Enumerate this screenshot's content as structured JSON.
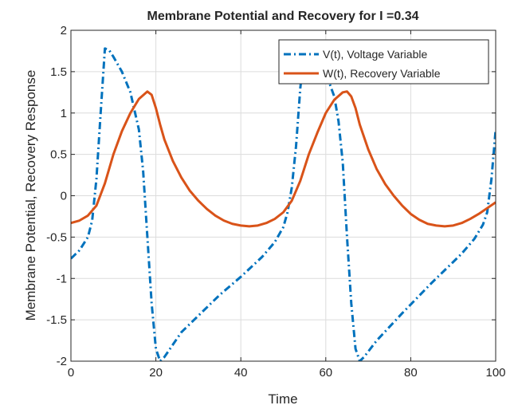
{
  "chart_data": {
    "type": "line",
    "title": "Membrane Potential and Recovery for I =0.34",
    "xlabel": "Time",
    "ylabel": "Membrane Potential, Recovery Response",
    "xlim": [
      0,
      100
    ],
    "ylim": [
      -2,
      2
    ],
    "xticks": [
      0,
      20,
      40,
      60,
      80,
      100
    ],
    "xtick_labels": [
      "0",
      "20",
      "40",
      "60",
      "80",
      "100"
    ],
    "yticks": [
      -2,
      -1.5,
      -1,
      -0.5,
      0,
      0.5,
      1,
      1.5,
      2
    ],
    "ytick_labels": [
      "-2",
      "-1.5",
      "-1",
      "-0.5",
      "0",
      "0.5",
      "1",
      "1.5",
      "2"
    ],
    "grid": true,
    "legend_position": "top-right",
    "series": [
      {
        "name": "V(t), Voltage Variable",
        "color": "#0072BD",
        "style": "dash-dot",
        "x": [
          0,
          2,
          4,
          5,
          6,
          7,
          8,
          9,
          10,
          12,
          14,
          16,
          17,
          18,
          19,
          20,
          21,
          22,
          24,
          26,
          30,
          35,
          40,
          45,
          48,
          50,
          51,
          52,
          53,
          54,
          55,
          56,
          57,
          58,
          60,
          62,
          63,
          64,
          65,
          66,
          67,
          68,
          69,
          72,
          78,
          85,
          92,
          95,
          97,
          98,
          99,
          100
        ],
        "y": [
          -0.76,
          -0.66,
          -0.5,
          -0.3,
          0.2,
          1.0,
          1.78,
          1.76,
          1.68,
          1.5,
          1.25,
          0.8,
          0.3,
          -0.5,
          -1.3,
          -1.85,
          -2.0,
          -1.95,
          -1.8,
          -1.65,
          -1.45,
          -1.2,
          -0.98,
          -0.74,
          -0.56,
          -0.38,
          -0.2,
          0.1,
          0.6,
          1.3,
          1.78,
          1.77,
          1.72,
          1.65,
          1.48,
          1.2,
          0.9,
          0.4,
          -0.5,
          -1.3,
          -1.85,
          -2.0,
          -1.95,
          -1.75,
          -1.42,
          -1.05,
          -0.7,
          -0.52,
          -0.35,
          -0.2,
          0.2,
          0.8
        ]
      },
      {
        "name": "W(t), Recovery Variable",
        "color": "#D95319",
        "style": "solid",
        "x": [
          0,
          2,
          4,
          6,
          8,
          10,
          12,
          14,
          16,
          18,
          19,
          20,
          21,
          22,
          24,
          26,
          28,
          30,
          32,
          34,
          36,
          38,
          40,
          42,
          44,
          46,
          48,
          50,
          52,
          54,
          56,
          58,
          60,
          62,
          64,
          65,
          66,
          67,
          68,
          70,
          72,
          74,
          76,
          78,
          80,
          82,
          84,
          86,
          88,
          90,
          92,
          94,
          96,
          98,
          100
        ],
        "y": [
          -0.33,
          -0.3,
          -0.24,
          -0.12,
          0.15,
          0.5,
          0.78,
          1.0,
          1.17,
          1.26,
          1.22,
          1.06,
          0.86,
          0.68,
          0.42,
          0.22,
          0.06,
          -0.06,
          -0.16,
          -0.24,
          -0.3,
          -0.34,
          -0.36,
          -0.37,
          -0.36,
          -0.33,
          -0.28,
          -0.2,
          -0.06,
          0.18,
          0.5,
          0.76,
          1.0,
          1.16,
          1.25,
          1.26,
          1.2,
          1.06,
          0.86,
          0.56,
          0.32,
          0.14,
          0.0,
          -0.12,
          -0.22,
          -0.29,
          -0.34,
          -0.36,
          -0.37,
          -0.36,
          -0.33,
          -0.28,
          -0.22,
          -0.15,
          -0.08
        ]
      }
    ]
  }
}
